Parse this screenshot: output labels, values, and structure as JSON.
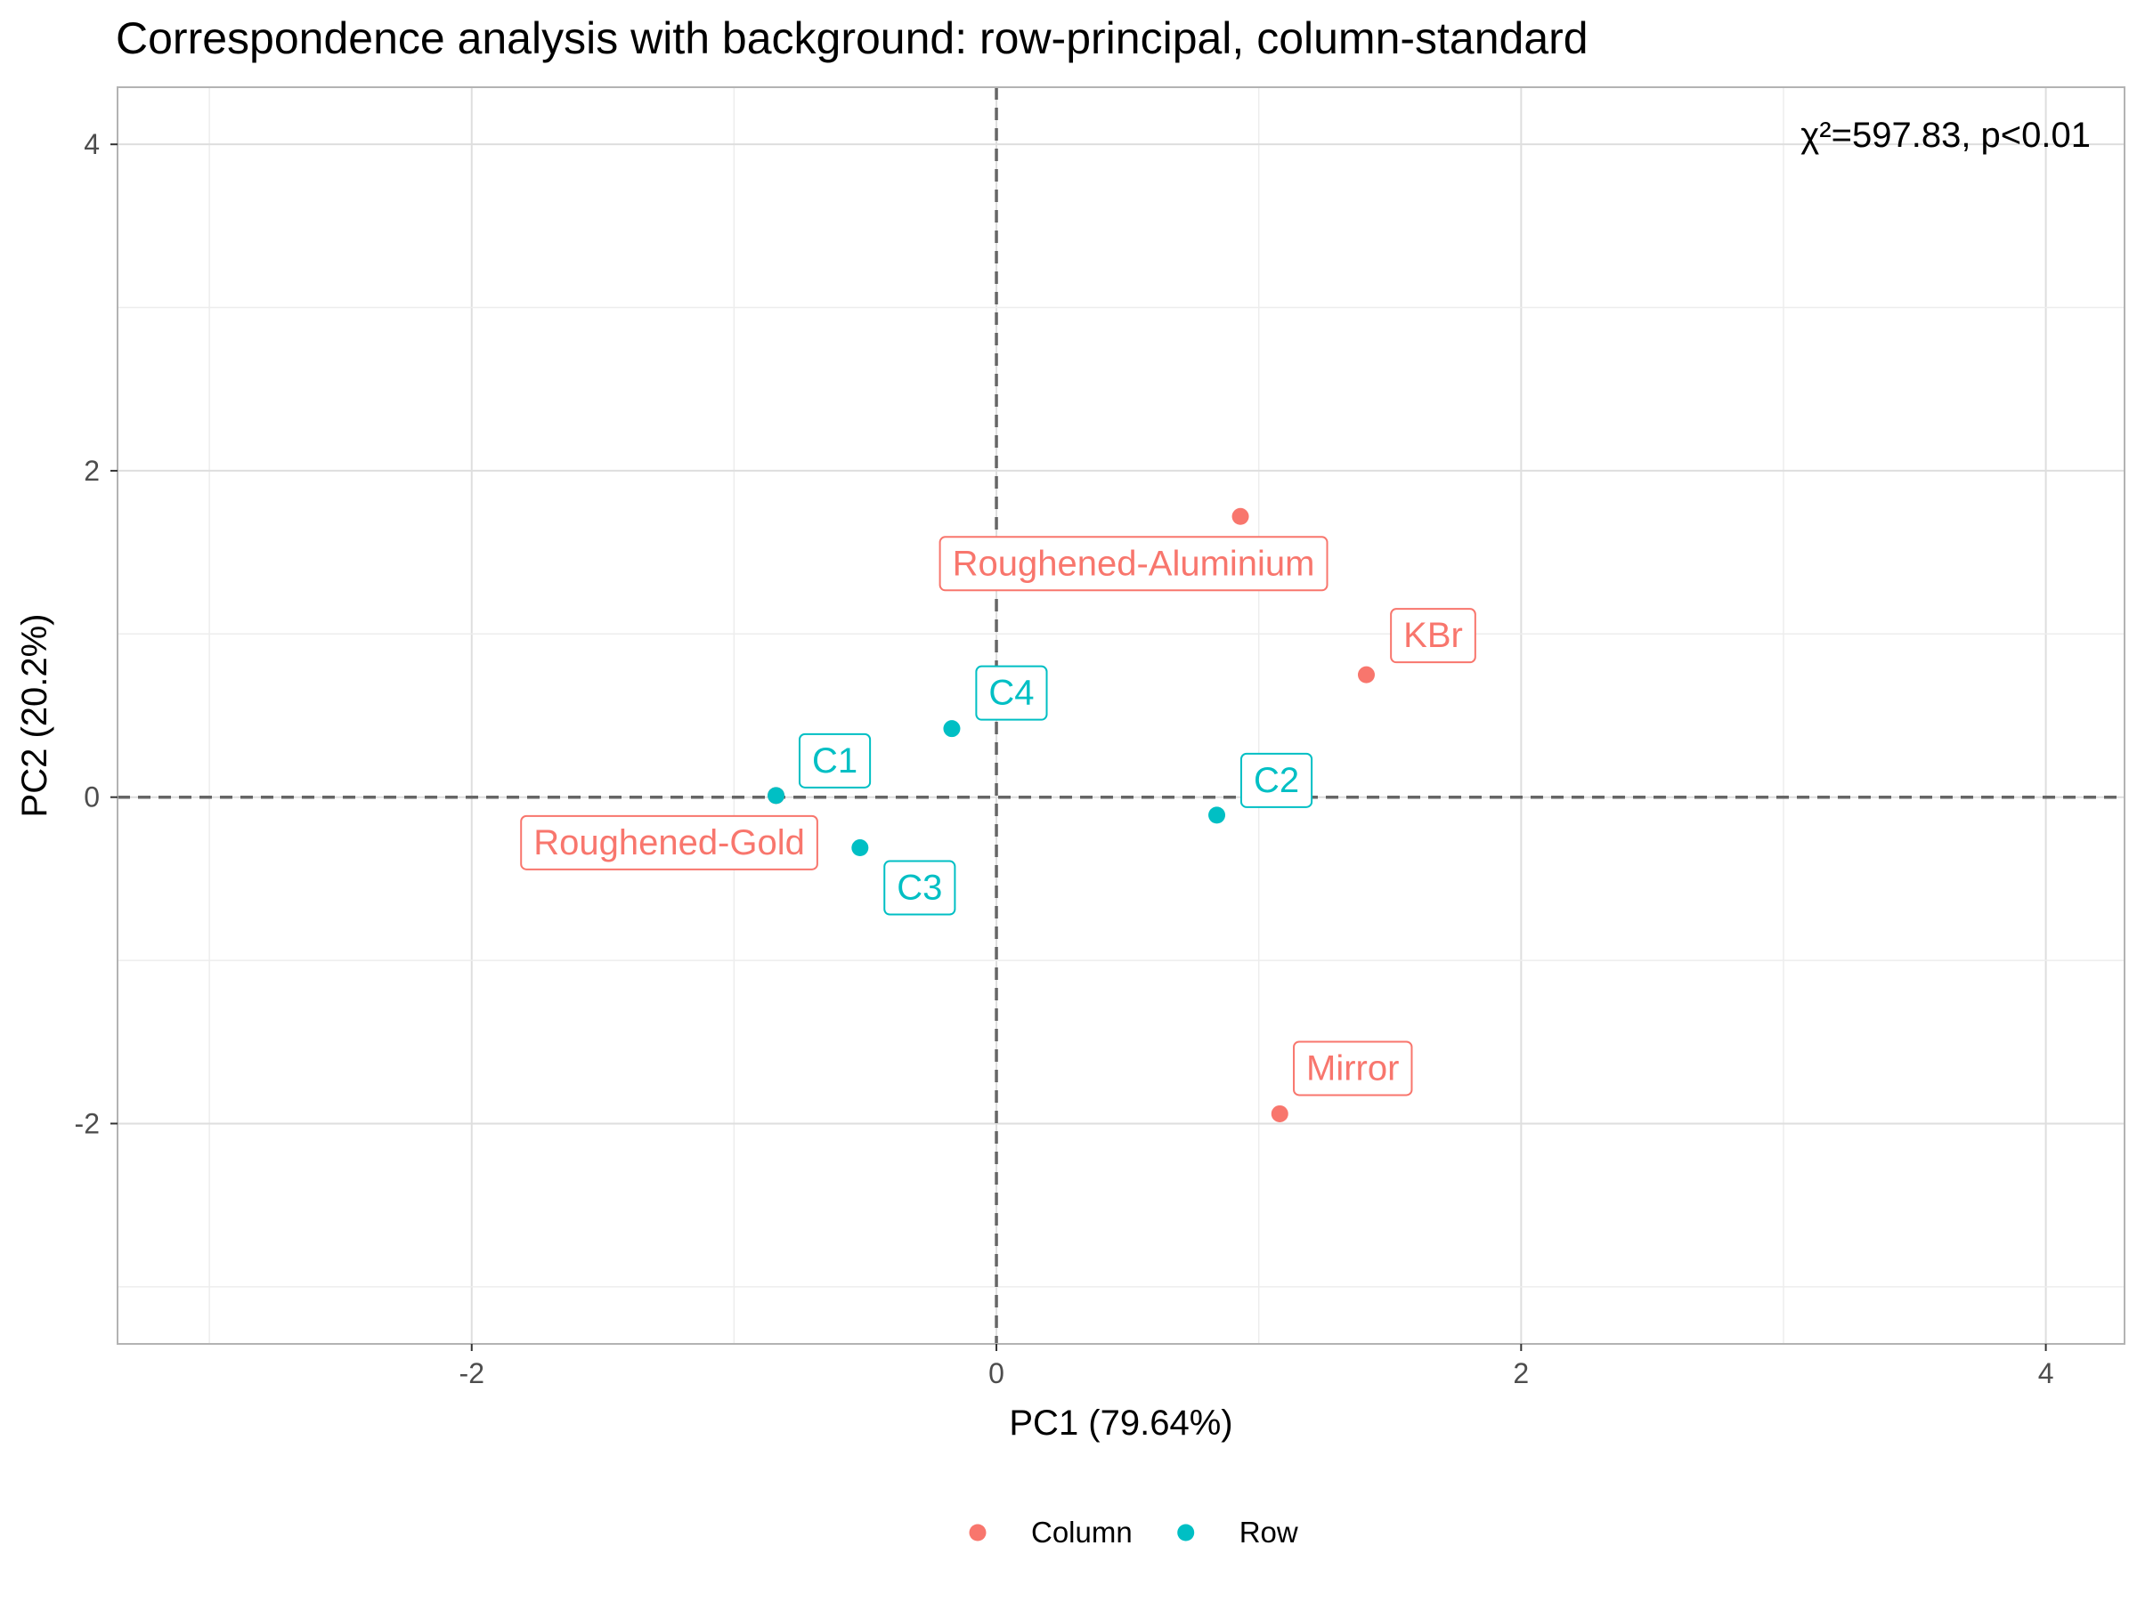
{
  "chart_data": {
    "type": "scatter",
    "title": "Correspondence analysis with background: row-principal, column-standard",
    "xlabel": "PC1 (79.64%)",
    "ylabel": "PC2 (20.2%)",
    "xlim": [
      -3.35,
      4.3
    ],
    "ylim": [
      -3.35,
      4.35
    ],
    "x_ticks": [
      -2,
      0,
      2,
      4
    ],
    "y_ticks": [
      -2,
      0,
      2,
      4
    ],
    "x_tick_labels": [
      "-2",
      "0",
      "2",
      "4"
    ],
    "y_tick_labels": [
      "-2",
      "0",
      "2",
      "4"
    ],
    "grid": true,
    "reference_lines": {
      "x": 0,
      "y": 0,
      "style": "dashed"
    },
    "annotation": "χ²=597.83, p<0.01",
    "legend_position": "bottom",
    "series": [
      {
        "name": "Column",
        "color": "#F8766D",
        "points": [
          {
            "label": "Roughened-Aluminium",
            "x": 0.93,
            "y": 1.72
          },
          {
            "label": "KBr",
            "x": 1.41,
            "y": 0.75
          },
          {
            "label": "Roughened-Gold",
            "x": -0.84,
            "y": 0.01
          },
          {
            "label": "Mirror",
            "x": 1.08,
            "y": -1.94
          }
        ]
      },
      {
        "name": "Row",
        "color": "#00BFC4",
        "points": [
          {
            "label": "C4",
            "x": -0.17,
            "y": 0.42
          },
          {
            "label": "C1",
            "x": -0.84,
            "y": 0.01
          },
          {
            "label": "C2",
            "x": 0.84,
            "y": -0.11
          },
          {
            "label": "C3",
            "x": -0.52,
            "y": -0.31
          }
        ]
      }
    ]
  }
}
